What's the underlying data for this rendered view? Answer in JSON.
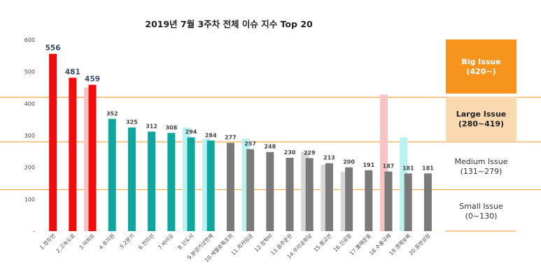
{
  "chart_data": {
    "type": "bar",
    "title": "2019년 7월 3주차 전체 이슈 지수 Top 20",
    "ylim": [
      0,
      600
    ],
    "yticks": [
      "-",
      "100",
      "200",
      "300",
      "400",
      "500",
      "600"
    ],
    "xlabel": "",
    "ylabel": "",
    "categories": [
      "1.정두언",
      "2.고속도로",
      "3.아파트",
      "4.유지원",
      "5.2분기",
      "6.전미선",
      "7.바이오",
      "8.신도시",
      "9.분양가상한제",
      "10.세월호특조위",
      "11.최저임금",
      "12.장학비",
      "13.음주운전",
      "14.우리공화당",
      "15.황교안",
      "16.신공항",
      "17.불매운동",
      "18.수출규제",
      "19.경제보복",
      "20.동반성장"
    ],
    "series": [
      {
        "values": [
          556,
          481,
          459,
          352,
          325,
          312,
          308,
          294,
          284,
          277,
          257,
          248,
          230,
          229,
          213,
          200,
          191,
          187,
          181,
          181
        ],
        "colors": [
          "#f20d0d",
          "#f20d0d",
          "#f20d0d",
          "#10a6a0",
          "#10a6a0",
          "#10a6a0",
          "#10a6a0",
          "#10a6a0",
          "#10a6a0",
          "#7a7a7a",
          "#7a7a7a",
          "#7a7a7a",
          "#7a7a7a",
          "#7a7a7a",
          "#7a7a7a",
          "#7a7a7a",
          "#7a7a7a",
          "#7a7a7a",
          "#7a7a7a",
          "#7a7a7a"
        ]
      }
    ],
    "ghost_values": [
      null,
      null,
      450,
      null,
      null,
      null,
      null,
      325,
      290,
      null,
      290,
      null,
      null,
      248,
      208,
      186,
      null,
      428,
      294,
      null
    ],
    "ghost_colors": [
      null,
      null,
      "#f7c4c4",
      null,
      null,
      null,
      null,
      "#b9f2f0",
      "#b9f2f0",
      null,
      "#b9f2f0",
      null,
      null,
      "#d6d6d6",
      "#d6d6d6",
      "#d6d6d6",
      null,
      "#f7c4c4",
      "#b9f2f0",
      null
    ],
    "thresholds": [
      420,
      280,
      130
    ],
    "threshold_color": "#f7941d",
    "grid": false,
    "legend": {
      "position": "right",
      "big": {
        "label": "Big Issue",
        "range": "(420~)"
      },
      "large": {
        "label": "Large Issue",
        "range": "(280~419)"
      },
      "medium": {
        "label": "Medium Issue",
        "range": "(131~279)"
      },
      "small": {
        "label": "Small Issue",
        "range": "(0~130)"
      }
    }
  }
}
